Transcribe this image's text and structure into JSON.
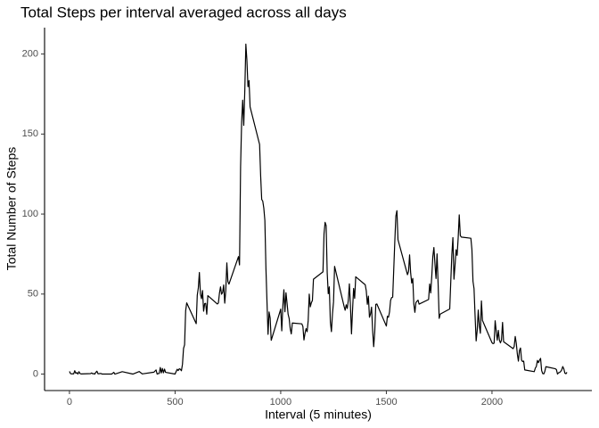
{
  "chart_data": {
    "type": "line",
    "title": "Total Steps per interval averaged across all days",
    "x_label": "Interval (5 minutes)",
    "y_label": "Total Number of Steps",
    "x": [
      0,
      5,
      10,
      15,
      20,
      25,
      30,
      35,
      40,
      45,
      50,
      55,
      100,
      105,
      110,
      115,
      120,
      125,
      130,
      135,
      140,
      145,
      150,
      155,
      200,
      210,
      215,
      250,
      300,
      330,
      345,
      400,
      410,
      415,
      420,
      425,
      430,
      435,
      440,
      445,
      450,
      455,
      500,
      505,
      510,
      515,
      520,
      525,
      530,
      535,
      540,
      545,
      550,
      555,
      600,
      605,
      610,
      615,
      620,
      625,
      630,
      635,
      640,
      645,
      650,
      655,
      700,
      705,
      710,
      715,
      720,
      725,
      730,
      735,
      740,
      745,
      750,
      755,
      800,
      805,
      810,
      815,
      820,
      825,
      830,
      835,
      840,
      845,
      850,
      855,
      900,
      905,
      910,
      915,
      920,
      925,
      930,
      935,
      940,
      945,
      950,
      955,
      1000,
      1005,
      1010,
      1015,
      1020,
      1025,
      1030,
      1035,
      1040,
      1045,
      1050,
      1055,
      1100,
      1105,
      1110,
      1115,
      1120,
      1125,
      1130,
      1135,
      1140,
      1145,
      1150,
      1155,
      1200,
      1205,
      1210,
      1215,
      1220,
      1225,
      1230,
      1235,
      1240,
      1245,
      1250,
      1255,
      1300,
      1305,
      1310,
      1315,
      1320,
      1325,
      1330,
      1335,
      1340,
      1345,
      1350,
      1355,
      1400,
      1405,
      1410,
      1415,
      1420,
      1425,
      1430,
      1435,
      1440,
      1445,
      1450,
      1455,
      1500,
      1505,
      1510,
      1515,
      1520,
      1525,
      1530,
      1535,
      1540,
      1545,
      1550,
      1555,
      1600,
      1605,
      1610,
      1615,
      1620,
      1625,
      1630,
      1635,
      1640,
      1645,
      1650,
      1655,
      1700,
      1705,
      1710,
      1715,
      1720,
      1725,
      1730,
      1735,
      1740,
      1745,
      1750,
      1755,
      1800,
      1805,
      1810,
      1815,
      1820,
      1825,
      1830,
      1835,
      1840,
      1845,
      1850,
      1855,
      1900,
      1905,
      1910,
      1915,
      1920,
      1925,
      1930,
      1935,
      1940,
      1945,
      1950,
      1955,
      2000,
      2005,
      2010,
      2015,
      2020,
      2025,
      2030,
      2035,
      2040,
      2045,
      2050,
      2055,
      2100,
      2105,
      2110,
      2115,
      2120,
      2125,
      2130,
      2135,
      2140,
      2145,
      2150,
      2155,
      2200,
      2205,
      2210,
      2215,
      2220,
      2225,
      2230,
      2235,
      2240,
      2245,
      2250,
      2255,
      2300,
      2305,
      2310,
      2315,
      2320,
      2325,
      2330,
      2335,
      2340,
      2345,
      2350,
      2355
    ],
    "series": [
      {
        "name": "Total Steps",
        "color": "#000000",
        "values": [
          1.7,
          0.3,
          0.1,
          0.2,
          0.1,
          2.1,
          0.5,
          0.9,
          0,
          1.5,
          0.3,
          0.1,
          0.3,
          0.7,
          0.2,
          0.3,
          0,
          1.1,
          1.8,
          0.2,
          0.2,
          0.4,
          0.3,
          0,
          0,
          1.1,
          0,
          1.5,
          0,
          1.6,
          0.1,
          1.2,
          2.6,
          0,
          0.3,
          0.4,
          4.1,
          0.7,
          3.5,
          0.8,
          3.1,
          1.1,
          0,
          1.6,
          3,
          2.2,
          3.3,
          3,
          2.1,
          6.1,
          16,
          18.3,
          39.5,
          44.5,
          31.5,
          49.3,
          53.8,
          63.5,
          50,
          47.1,
          52.2,
          39.3,
          44,
          44.2,
          37.4,
          49,
          43.8,
          44.4,
          50.5,
          54.5,
          49.9,
          51,
          55.7,
          44.3,
          52.3,
          69.5,
          57.8,
          56.2,
          73.4,
          68.2,
          129.4,
          157.5,
          171.2,
          155.4,
          177.3,
          206.2,
          195.9,
          179.6,
          183.4,
          167,
          143.5,
          124,
          109.1,
          108.1,
          103.7,
          96,
          66.2,
          45.2,
          24.8,
          38.8,
          35,
          21.1,
          40.6,
          27,
          42.4,
          52.7,
          38.9,
          50.8,
          44.3,
          37.4,
          34.7,
          28.3,
          25.1,
          31.9,
          31.4,
          29.7,
          21.3,
          25.5,
          28.4,
          26.5,
          33.4,
          50,
          42,
          44.6,
          46,
          59.3,
          63.9,
          87.7,
          94.8,
          92.8,
          63.4,
          50.2,
          54.5,
          32.4,
          26.5,
          37.7,
          45.1,
          67.3,
          42.3,
          39.9,
          43.3,
          41,
          46.2,
          56.4,
          42.8,
          25.1,
          40,
          53.5,
          47.3,
          60.8,
          55.8,
          52,
          43.6,
          48.7,
          35.5,
          37.5,
          41.8,
          27.5,
          17.1,
          26.1,
          43.6,
          43.8,
          30,
          36.1,
          35.5,
          38.8,
          46,
          47.8,
          48.1,
          65.3,
          82.9,
          98.7,
          102.1,
          84,
          62.1,
          64.1,
          74.5,
          63.2,
          56.9,
          59.8,
          43.9,
          38.6,
          44.7,
          45.5,
          46.2,
          43.7,
          46.6,
          56.3,
          50.7,
          61.2,
          73.4,
          79.1,
          68.9,
          59.7,
          75.1,
          56.5,
          34.8,
          37.5,
          40.7,
          58,
          74.7,
          85.3,
          59.3,
          67.8,
          77.7,
          74.2,
          85.3,
          99.5,
          86.6,
          85.6,
          84.9,
          77.8,
          58,
          53.4,
          36.3,
          20.7,
          27.4,
          40,
          30.2,
          25.5,
          45.7,
          33.5,
          19.6,
          19,
          19.3,
          33.3,
          26.8,
          21.2,
          27.3,
          21.3,
          19.5,
          21.3,
          32.3,
          20.2,
          15.9,
          17.2,
          23.5,
          19.2,
          12.5,
          8.1,
          14.7,
          16.3,
          8.7,
          7.8,
          8.1,
          2.6,
          1.5,
          3.7,
          4.8,
          8.5,
          7.1,
          8.7,
          9.8,
          2.2,
          0.3,
          0.1,
          1.6,
          4.6,
          3.3,
          2.8,
          0,
          0.8,
          1,
          1.6,
          2.6,
          4.7,
          3.3,
          0.6,
          0.2,
          1.1
        ]
      }
    ],
    "xlim": [
      -117.75,
      2472.75
    ],
    "xticks": [
      0,
      500,
      1000,
      1500,
      2000
    ],
    "ylim": [
      -10.3,
      216.5
    ],
    "yticks": [
      0,
      50,
      100,
      150,
      200
    ],
    "grid": false
  }
}
